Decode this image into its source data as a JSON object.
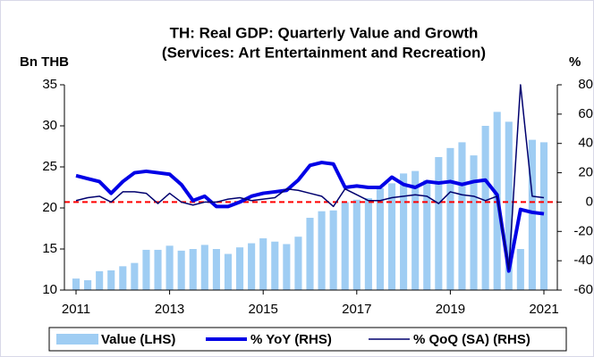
{
  "chart_data": {
    "type": "bar_line",
    "title": "TH: Real GDP: Quarterly Value and Growth",
    "subtitle": "(Services: Art Entertainment and Recreation)",
    "y_label": "Bn THB",
    "y2_label": "%",
    "categories": [
      "2011",
      null,
      null,
      null,
      null,
      null,
      null,
      null,
      "2013",
      null,
      null,
      null,
      null,
      null,
      null,
      null,
      "2015",
      null,
      null,
      null,
      null,
      null,
      null,
      null,
      "2017",
      null,
      null,
      null,
      null,
      null,
      null,
      null,
      "2019",
      null,
      null,
      null,
      null,
      null,
      null,
      null,
      "2021"
    ],
    "series": [
      {
        "name": "Value (LHS)",
        "type": "bar",
        "color": "#9fcdf3",
        "axis": "y",
        "values": [
          11.4,
          11.2,
          12.3,
          12.4,
          12.9,
          13.3,
          14.9,
          14.9,
          15.4,
          14.8,
          15.0,
          15.5,
          15.0,
          14.4,
          15.2,
          15.7,
          16.3,
          15.9,
          15.6,
          16.5,
          18.8,
          19.6,
          19.7,
          20.7,
          21.0,
          21.2,
          22.4,
          23.0,
          24.2,
          24.5,
          23.4,
          26.2,
          27.3,
          28.0,
          26.4,
          30.0,
          31.7,
          30.5,
          15.0,
          28.3,
          28.0
        ]
      },
      {
        "name": "% YoY (RHS)",
        "type": "line",
        "color": "#0000e6",
        "width": 4,
        "axis": "y2",
        "values": [
          18,
          16,
          14,
          6,
          14,
          20,
          21,
          20,
          19,
          12,
          1,
          4,
          -3,
          -3,
          0,
          4,
          6,
          7,
          8,
          15,
          25,
          27,
          26,
          10,
          11,
          10,
          10,
          17,
          12,
          10,
          14,
          13,
          14,
          12,
          14,
          15,
          5,
          -47,
          -5,
          -7,
          -8
        ]
      },
      {
        "name": "% QoQ (SA) (RHS)",
        "type": "line",
        "color": "#00006e",
        "width": 1.5,
        "axis": "y2",
        "values": [
          1,
          3,
          4,
          0,
          7,
          7,
          6,
          -1,
          6,
          0,
          -2,
          0,
          0,
          2,
          3,
          1,
          2,
          3,
          9,
          8,
          6,
          4,
          -3,
          9,
          5,
          1,
          1,
          3,
          4,
          5,
          4,
          -1,
          7,
          5,
          4,
          1,
          4,
          -46,
          80,
          4,
          3
        ]
      }
    ],
    "ylim": [
      10,
      35
    ],
    "yticks": [
      10,
      15,
      20,
      25,
      30,
      35
    ],
    "y2lim": [
      -60,
      80
    ],
    "y2ticks": [
      -60,
      -40,
      -20,
      0,
      20,
      40,
      60,
      80
    ],
    "reference_line": {
      "axis": "y2",
      "value": 0,
      "color": "#ff0000",
      "style": "dashed"
    },
    "legend": "bottom"
  }
}
